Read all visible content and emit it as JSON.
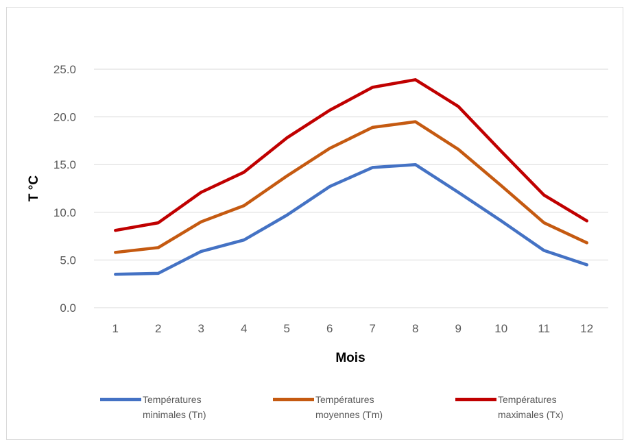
{
  "chart_data": {
    "type": "line",
    "title": "",
    "xlabel": "Mois",
    "ylabel": "T °C",
    "categories": [
      "1",
      "2",
      "3",
      "4",
      "5",
      "6",
      "7",
      "8",
      "9",
      "10",
      "11",
      "12"
    ],
    "ylim": [
      0,
      25
    ],
    "yticks": [
      "0.0",
      "5.0",
      "10.0",
      "15.0",
      "20.0",
      "25.0"
    ],
    "grid": true,
    "legend_position": "bottom",
    "series": [
      {
        "name": "Températures minimales (Tn)",
        "legend_lines": [
          "Températures",
          "minimales (Tn)"
        ],
        "color": "#4472C4",
        "values": [
          3.5,
          3.6,
          5.9,
          7.1,
          9.7,
          12.7,
          14.7,
          15.0,
          12.1,
          9.1,
          6.0,
          4.5
        ]
      },
      {
        "name": "Températures moyennes (Tm)",
        "legend_lines": [
          "Températures",
          "moyennes (Tm)"
        ],
        "color": "#C55A11",
        "values": [
          5.8,
          6.3,
          9.0,
          10.7,
          13.8,
          16.7,
          18.9,
          19.5,
          16.6,
          12.8,
          8.9,
          6.8
        ]
      },
      {
        "name": "Températures maximales (Tx)",
        "legend_lines": [
          "Températures",
          "maximales (Tx)"
        ],
        "color": "#C00000",
        "values": [
          8.1,
          8.9,
          12.1,
          14.2,
          17.8,
          20.7,
          23.1,
          23.9,
          21.1,
          16.4,
          11.8,
          9.1
        ]
      }
    ]
  }
}
